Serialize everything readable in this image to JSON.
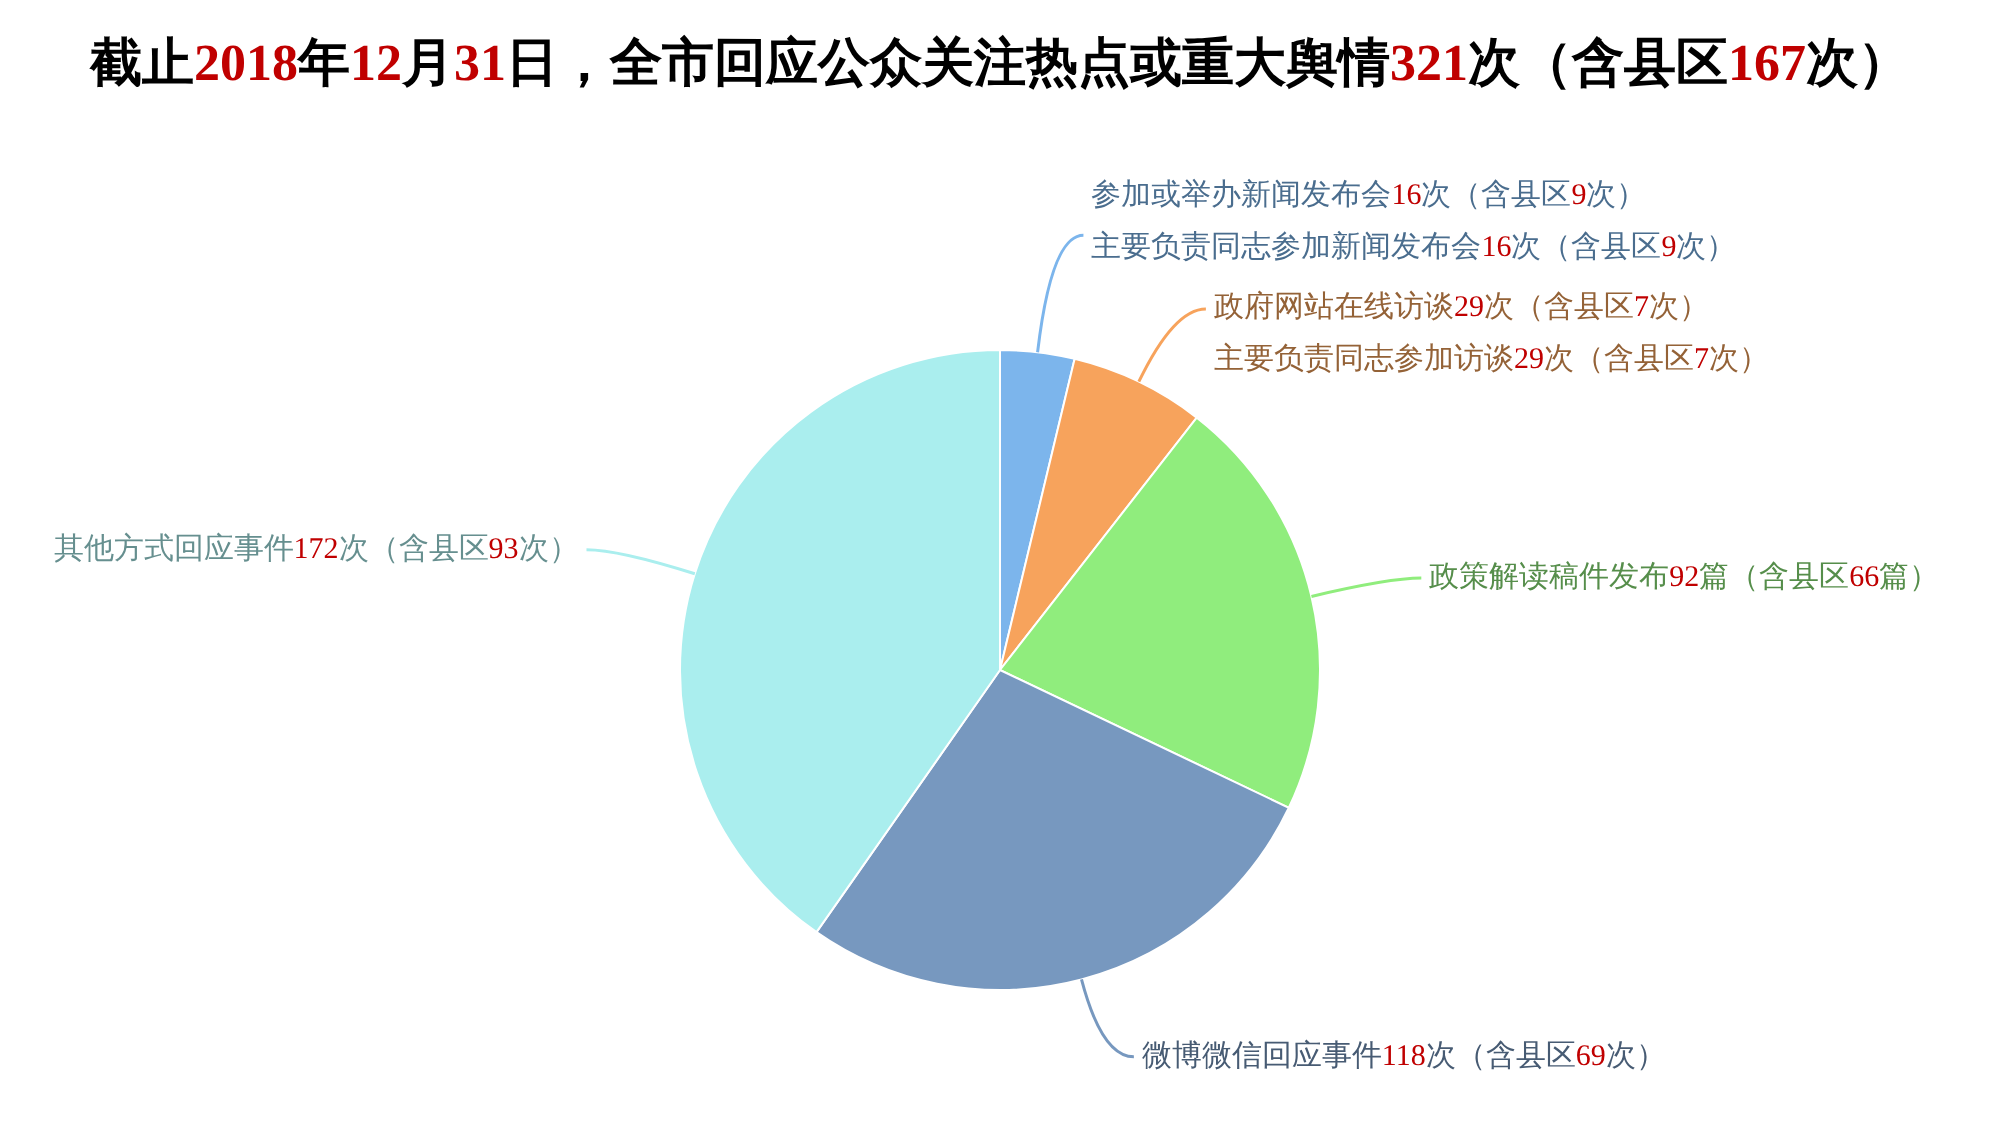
{
  "chart_data": {
    "type": "pie",
    "title": "截止2018年12月31日，全市回应公众关注热点或重大舆情321次（含县区167次）",
    "categories": [
      "参加或举办新闻发布会16次（含县区9次）主要负责同志参加新闻发布会16次（含县区9次）",
      "政府网站在线访谈29次（含县区7次）主要负责同志参加访谈29次（含县区7次）",
      "政策解读稿件发布92篇（含县区66篇）",
      "微博微信回应事件118次（含县区69次）",
      "其他方式回应事件172次（含县区93次）"
    ],
    "values": [
      16,
      29,
      92,
      118,
      172
    ],
    "colors": [
      "#7cb5ec",
      "#f7a35c",
      "#90ed7d",
      "#7798bf",
      "#aaeeee"
    ],
    "legend": false
  }
}
